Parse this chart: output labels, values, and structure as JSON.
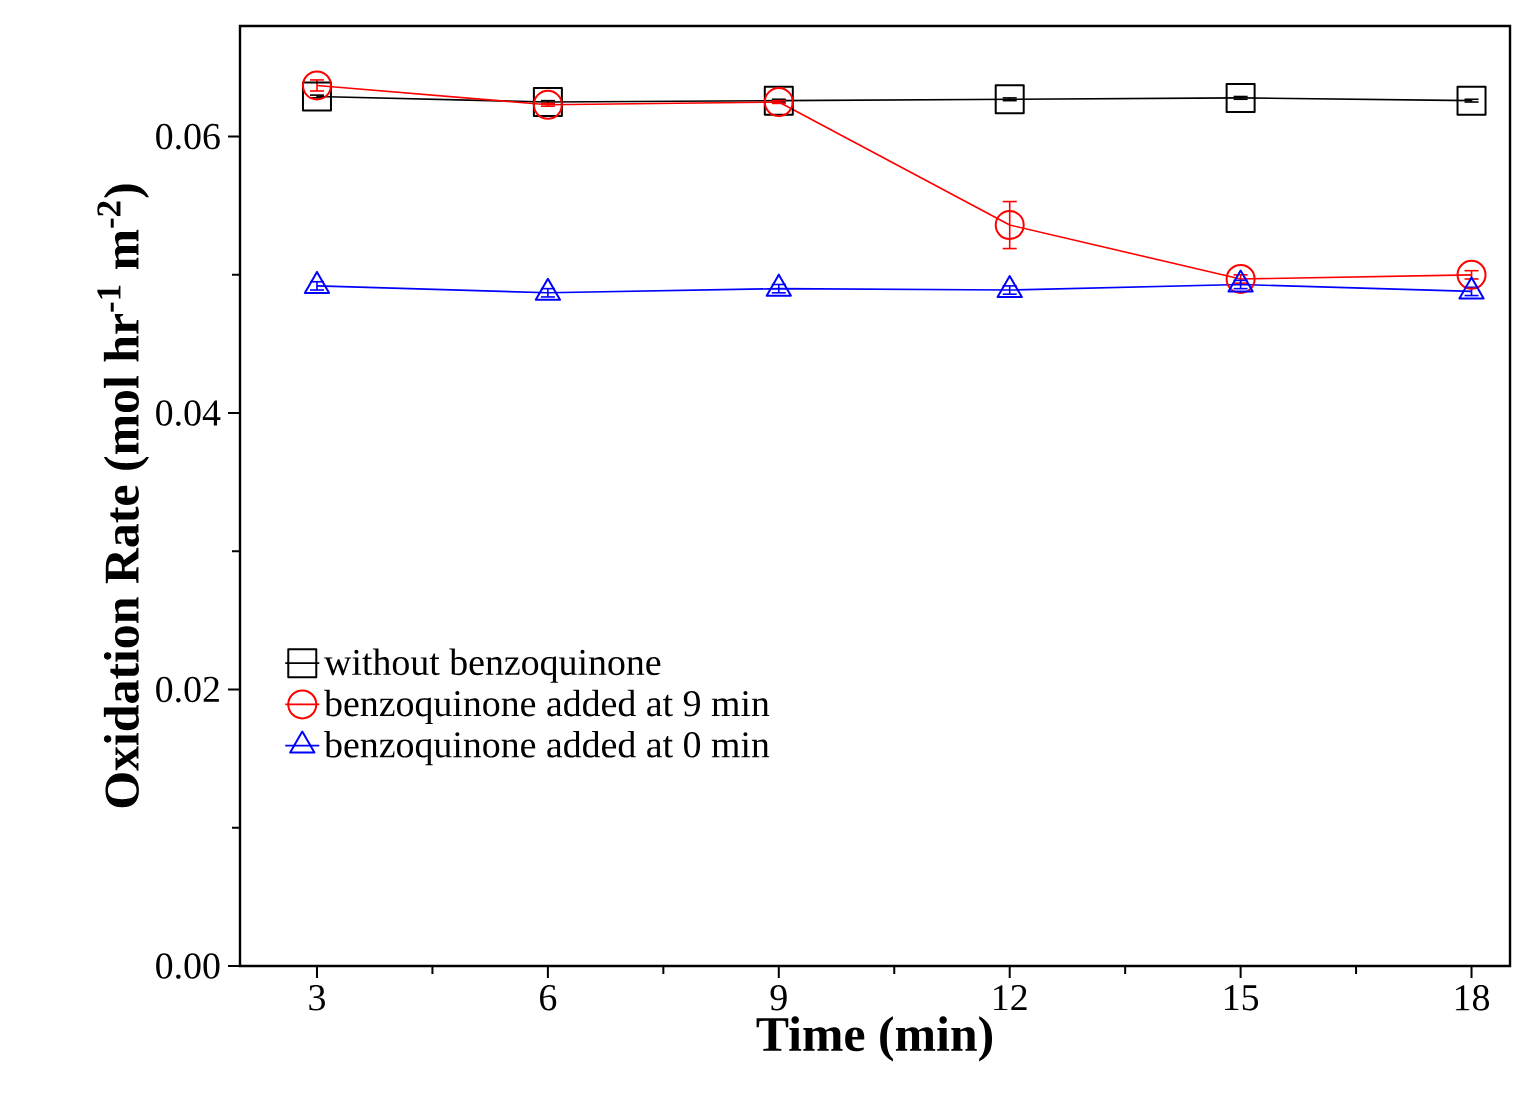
{
  "chart_data": {
    "type": "line",
    "xlabel": "Time (min)",
    "ylabel": "Oxidation Rate (mol hr$^{-1}$ m$^{-2}$)",
    "x": [
      3,
      6,
      9,
      12,
      15,
      18
    ],
    "xlim": [
      2,
      18.5
    ],
    "xticks": [
      3,
      6,
      9,
      12,
      15,
      18
    ],
    "ylim": [
      0,
      0.068
    ],
    "yticks": [
      {
        "value": 0,
        "label": "0.00"
      },
      {
        "value": 0.02,
        "label": "0.02"
      },
      {
        "value": 0.04,
        "label": "0.04"
      },
      {
        "value": 0.06,
        "label": "0.06"
      }
    ],
    "legend": "bottom left",
    "grid": false,
    "line_style": "solid",
    "series": [
      {
        "name": "without benzoquinone",
        "color": "#000000",
        "marker": "square",
        "values": [
          0.0629,
          0.0625,
          0.0626,
          0.0627,
          0.0628,
          0.0626
        ],
        "errors": [
          0.0001,
          0.0001,
          0.0001,
          0.0001,
          0.0001,
          0.0001
        ]
      },
      {
        "name": "benzoquinone added at 9 min",
        "color": "#ff0000",
        "marker": "circle",
        "values": [
          0.0637,
          0.0623,
          0.0625,
          0.0536,
          0.0497,
          0.05
        ],
        "errors": [
          0.0004,
          0.0001,
          0.0001,
          0.0017,
          0.0003,
          0.0003
        ]
      },
      {
        "name": "benzoquinone added at 0 min",
        "color": "#0000ff",
        "marker": "triangle",
        "values": [
          0.0492,
          0.0487,
          0.049,
          0.0489,
          0.0493,
          0.0488
        ],
        "errors": [
          0.0003,
          0.0003,
          0.0003,
          0.0003,
          0.0003,
          0.0003
        ]
      }
    ]
  }
}
